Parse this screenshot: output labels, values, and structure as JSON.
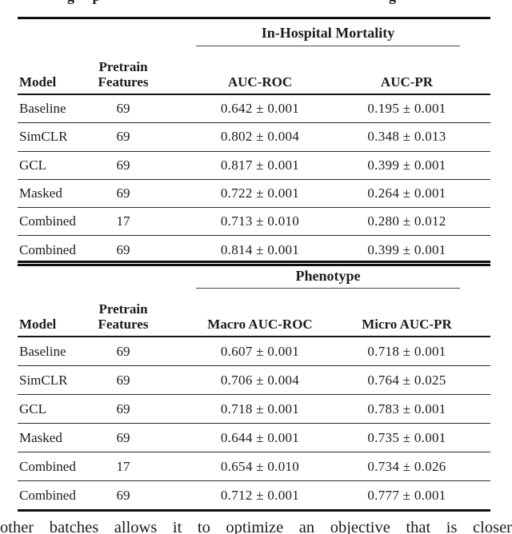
{
  "cropped": {
    "top_left_fragment": "g p",
    "top_right_fragment": "g",
    "bottom_text": "other batches allows it to optimize an objective that is closer"
  },
  "tables": [
    {
      "group_header": "In-Hospital Mortality",
      "headers": {
        "model": "Model",
        "pretrain_line1": "Pretrain",
        "pretrain_line2": "Features",
        "metric1": "AUC-ROC",
        "metric2": "AUC-PR"
      },
      "rows": [
        {
          "model": "Baseline",
          "features": "69",
          "metric1": "0.642 ± 0.001",
          "metric2": "0.195 ± 0.001"
        },
        {
          "model": "SimCLR",
          "features": "69",
          "metric1": "0.802 ± 0.004",
          "metric2": "0.348 ± 0.013"
        },
        {
          "model": "GCL",
          "features": "69",
          "metric1": "0.817 ± 0.001",
          "metric2": "0.399 ± 0.001"
        },
        {
          "model": "Masked",
          "features": "69",
          "metric1": "0.722 ± 0.001",
          "metric2": "0.264 ± 0.001"
        },
        {
          "model": "Combined",
          "features": "17",
          "metric1": "0.713 ± 0.010",
          "metric2": "0.280 ± 0.012"
        },
        {
          "model": "Combined",
          "features": "69",
          "metric1": "0.814 ± 0.001",
          "metric2": "0.399 ± 0.001"
        }
      ]
    },
    {
      "group_header": "Phenotype",
      "headers": {
        "model": "Model",
        "pretrain_line1": "Pretrain",
        "pretrain_line2": "Features",
        "metric1": "Macro AUC-ROC",
        "metric2": "Micro AUC-PR"
      },
      "rows": [
        {
          "model": "Baseline",
          "features": "69",
          "metric1": "0.607 ± 0.001",
          "metric2": "0.718 ± 0.001"
        },
        {
          "model": "SimCLR",
          "features": "69",
          "metric1": "0.706 ± 0.004",
          "metric2": "0.764 ± 0.025"
        },
        {
          "model": "GCL",
          "features": "69",
          "metric1": "0.718 ± 0.001",
          "metric2": "0.783 ± 0.001"
        },
        {
          "model": "Masked",
          "features": "69",
          "metric1": "0.644 ± 0.001",
          "metric2": "0.735 ± 0.001"
        },
        {
          "model": "Combined",
          "features": "17",
          "metric1": "0.654 ± 0.010",
          "metric2": "0.734 ± 0.026"
        },
        {
          "model": "Combined",
          "features": "69",
          "metric1": "0.712 ± 0.001",
          "metric2": "0.777 ± 0.001"
        }
      ]
    }
  ]
}
